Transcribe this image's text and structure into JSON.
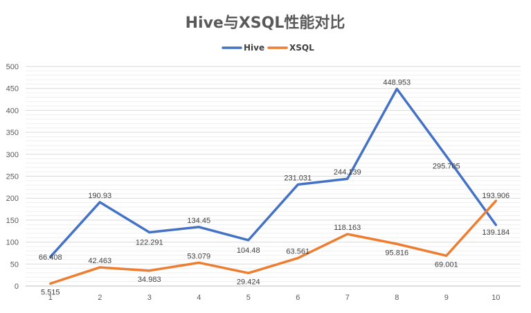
{
  "chart_data": {
    "type": "line",
    "title": "Hive与XSQL性能对比",
    "categories": [
      "1",
      "2",
      "3",
      "4",
      "5",
      "6",
      "7",
      "8",
      "9",
      "10"
    ],
    "series": [
      {
        "name": "Hive",
        "color": "#4472C4",
        "values": [
          66.408,
          190.93,
          122.291,
          134.45,
          104.48,
          231.031,
          244.139,
          448.953,
          295.705,
          139.184
        ],
        "labels": [
          "66.408",
          "190.93",
          "122.291",
          "134.45",
          "104.48",
          "231.031",
          "244.139",
          "448.953",
          "295.705",
          "139.184"
        ]
      },
      {
        "name": "XSQL",
        "color": "#ED7D31",
        "values": [
          5.515,
          42.463,
          34.983,
          53.079,
          29.424,
          63.561,
          118.163,
          95.816,
          69.001,
          193.906
        ],
        "labels": [
          "5.515",
          "42.463",
          "34.983",
          "53.079",
          "29.424",
          "63.561",
          "118.163",
          "95.816",
          "69.001",
          "193.906"
        ]
      }
    ],
    "ylim": [
      0,
      500
    ],
    "yticks": [
      "0",
      "50",
      "100",
      "150",
      "200",
      "250",
      "300",
      "350",
      "400",
      "450",
      "500"
    ],
    "legend_position": "top",
    "grid": true
  }
}
